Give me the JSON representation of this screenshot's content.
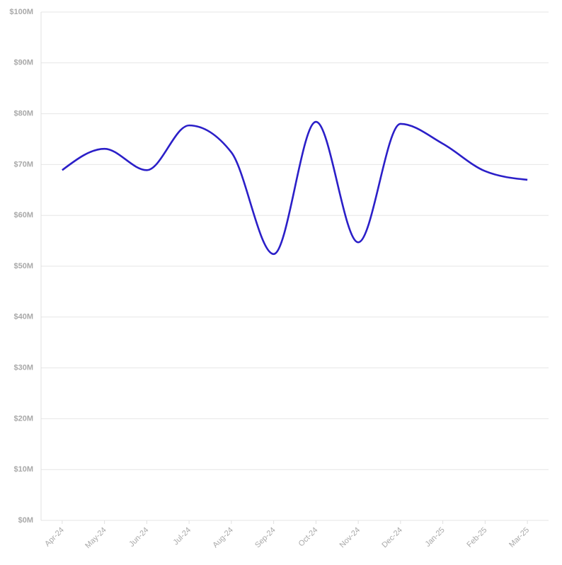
{
  "chart_data": {
    "type": "line",
    "categories": [
      "Apr-24",
      "May-24",
      "Jun-24",
      "Jul-24",
      "Aug-24",
      "Sep-24",
      "Oct-24",
      "Nov-24",
      "Dec-24",
      "Jan-25",
      "Feb-25",
      "Mar-25"
    ],
    "series": [
      {
        "color": "#2b1fc8",
        "values": [
          68.9,
          73.1,
          68.9,
          77.7,
          72.4,
          52.4,
          78.4,
          54.7,
          78.0,
          74.1,
          68.7,
          67.0
        ]
      }
    ],
    "ylim": [
      0,
      100
    ],
    "yticks": [
      {
        "value": 0,
        "label": "$0M"
      },
      {
        "value": 10,
        "label": "$10M"
      },
      {
        "value": 20,
        "label": "$20M"
      },
      {
        "value": 30,
        "label": "$30M"
      },
      {
        "value": 40,
        "label": "$40M"
      },
      {
        "value": 50,
        "label": "$50M"
      },
      {
        "value": 60,
        "label": "$60M"
      },
      {
        "value": 70,
        "label": "$70M"
      },
      {
        "value": 80,
        "label": "$80M"
      },
      {
        "value": 90,
        "label": "$90M"
      },
      {
        "value": 100,
        "label": "$100M"
      }
    ],
    "grid": true,
    "smooth": true
  }
}
